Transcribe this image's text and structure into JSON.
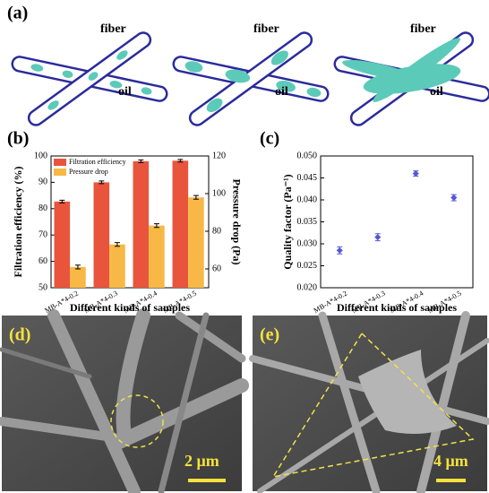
{
  "panels": {
    "a": {
      "label": "(a)",
      "fiber": [
        "fiber",
        "fiber",
        "fiber"
      ],
      "oil": [
        "oil",
        "oil",
        "oil"
      ]
    },
    "d": {
      "label": "(d)",
      "scale": "2 μm"
    },
    "e": {
      "label": "(e)",
      "scale": "4 μm"
    }
  },
  "chart_data": [
    {
      "type": "bar",
      "label": "(b)",
      "x_label": "Different kinds of samples",
      "y_label": "Filtration efficiency (%)",
      "y2_label": "Pressure drop (Pa)",
      "categories": [
        "MB-A*4-0.2",
        "MB-A*4-0.3",
        "MB-A*4-0.4",
        "MB-A*4-0.5"
      ],
      "series": [
        {
          "name": "Filtration efficiency",
          "color": "#e8553c",
          "values": [
            82.7,
            90,
            98,
            98.2
          ],
          "errors": [
            0.5,
            0.5,
            0.5,
            0.5
          ]
        },
        {
          "name": "Pressure drop",
          "color": "#f7b846",
          "axis": "y2",
          "values": [
            61,
            73,
            83,
            98
          ],
          "errors": [
            1,
            1,
            1,
            1
          ]
        }
      ],
      "ylim": [
        50,
        100
      ],
      "yticks": [
        50,
        60,
        70,
        80,
        90,
        100
      ],
      "y2lim": [
        50,
        120
      ],
      "y2ticks": [
        60,
        80,
        100,
        120
      ],
      "legend": "top-left"
    },
    {
      "type": "scatter",
      "label": "(c)",
      "x_label": "Different kinds of samples",
      "y_label": "Quality factor (Pa⁻¹)",
      "categories": [
        "MB-A*4-0.2",
        "MB-A*4-0.3",
        "MB-A*4-0.4",
        "MB-A*4-0.5"
      ],
      "series": [
        {
          "color": "#5656d6",
          "values": [
            0.0285,
            0.0315,
            0.046,
            0.0405
          ],
          "errors": [
            0.0008,
            0.0008,
            0.0006,
            0.0007
          ]
        }
      ],
      "ylim": [
        0.02,
        0.05
      ],
      "yticks": [
        {
          "value": 0.02,
          "label": "0.020"
        },
        0.025,
        {
          "value": 0.03,
          "label": "0.030"
        },
        0.035,
        {
          "value": 0.04,
          "label": "0.040"
        },
        0.045,
        {
          "value": 0.05,
          "label": "0.050"
        }
      ]
    }
  ]
}
